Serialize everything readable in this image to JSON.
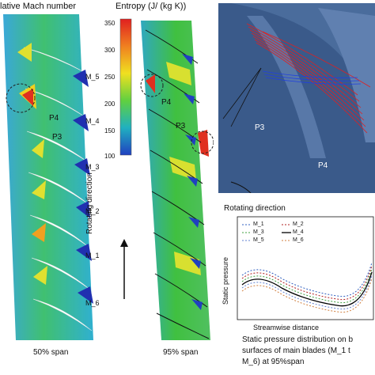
{
  "titles": {
    "mach": "lative Mach number",
    "entropy": "Entropy (J/ (kg K))"
  },
  "colorbar": {
    "ticks": [
      "350",
      "300",
      "250",
      "200",
      "150",
      "100"
    ],
    "colors": [
      "#e02020",
      "#f08020",
      "#f0e020",
      "#60d040",
      "#20b0c0",
      "#2040c0"
    ]
  },
  "mach_labels": [
    "M_5",
    "M_4",
    "M_3",
    "M_2",
    "M_1",
    "M_6"
  ],
  "passage_labels": {
    "left_p4": "P4",
    "left_p3": "P3",
    "mid_p4": "P4",
    "mid_p3": "P3",
    "right_p3": "P3",
    "right_p4": "P4"
  },
  "rotating_vertical": "Rotating direction",
  "rotating_3d": "Rotating direction",
  "spans": {
    "left": "50% span",
    "middle": "95% span"
  },
  "static_chart": {
    "ylabel": "Static pressure",
    "xlabel": "Streamwise distance",
    "legend": [
      {
        "name": "M_1",
        "color": "#3060c0",
        "style": "dotted"
      },
      {
        "name": "M_2",
        "color": "#b02020",
        "style": "dotted"
      },
      {
        "name": "M_3",
        "color": "#40a040",
        "style": "dotted"
      },
      {
        "name": "M_4",
        "color": "#000000",
        "style": "solid"
      },
      {
        "name": "M_5",
        "color": "#6080d0",
        "style": "dotted"
      },
      {
        "name": "M_6",
        "color": "#d08040",
        "style": "dotted"
      }
    ]
  },
  "caption": {
    "line1": "Static pressure distribution on b",
    "line2": "surfaces of main blades (M_1 t",
    "line3": "M_6) at 95%span"
  }
}
